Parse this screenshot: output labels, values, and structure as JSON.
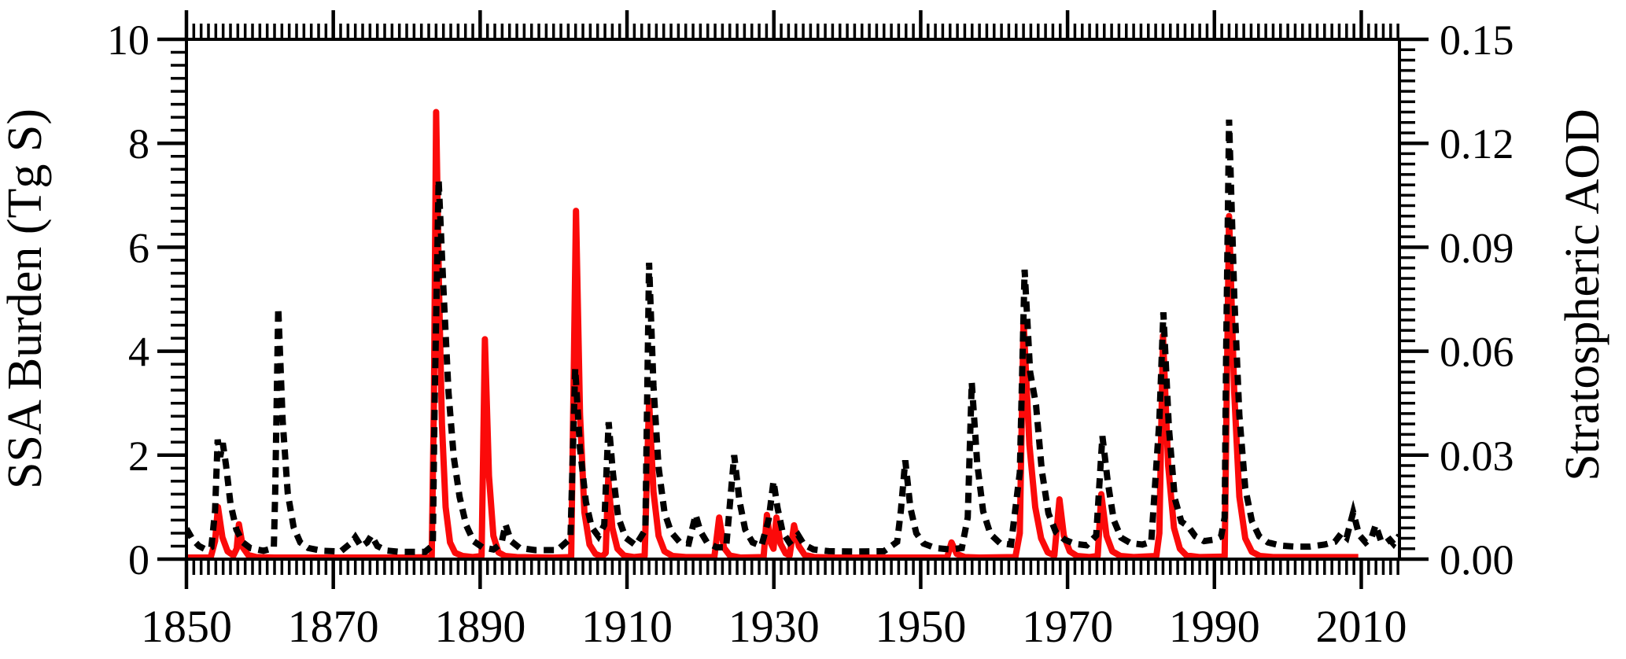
{
  "figure": {
    "left_axis": {
      "title": "SSA Burden (Tg S)"
    },
    "right_axis": {
      "title": "Stratospheric AOD"
    },
    "colors": {
      "ssa_burden": "#fb0a0a",
      "aod": "#000000",
      "axis": "#000000"
    }
  },
  "chart_data": {
    "type": "line",
    "title": "",
    "xlabel": "",
    "x_range": [
      1850,
      2015.2
    ],
    "x_major_ticks": [
      1850,
      1870,
      1890,
      1910,
      1930,
      1950,
      1970,
      1990,
      2010
    ],
    "x_minor_step": 1,
    "left_y_label": "SSA Burden (Tg S)",
    "left_y_range": [
      0,
      10
    ],
    "left_y_major_ticks": [
      0,
      2,
      4,
      6,
      8,
      10
    ],
    "left_y_minor_step": 0.25,
    "right_y_label": "Stratospheric AOD",
    "right_y_range": [
      0,
      0.15
    ],
    "right_y_major_ticks": [
      "0.00",
      "0.03",
      "0.06",
      "0.09",
      "0.12",
      "0.15"
    ],
    "right_y_major_values": [
      0,
      0.03,
      0.06,
      0.09,
      0.12,
      0.15
    ],
    "right_y_minor_step": 0.003,
    "grid": false,
    "legend": "none",
    "series": [
      {
        "name": "SSA Burden",
        "axis": "left",
        "units": "Tg S",
        "color": "#fb0a0a",
        "style": "solid",
        "points": [
          [
            1850,
            0.03
          ],
          [
            1853.3,
            0.03
          ],
          [
            1853.9,
            0.35
          ],
          [
            1854.3,
            1.0
          ],
          [
            1854.9,
            0.42
          ],
          [
            1855.6,
            0.15
          ],
          [
            1856.4,
            0.07
          ],
          [
            1856.85,
            0.2
          ],
          [
            1857.15,
            0.67
          ],
          [
            1857.7,
            0.22
          ],
          [
            1858.4,
            0.08
          ],
          [
            1859.5,
            0.04
          ],
          [
            1862,
            0.03
          ],
          [
            1870,
            0.03
          ],
          [
            1880,
            0.03
          ],
          [
            1883.4,
            0.04
          ],
          [
            1883.7,
            3.0
          ],
          [
            1884.0,
            8.6
          ],
          [
            1884.4,
            5.2
          ],
          [
            1884.8,
            2.6
          ],
          [
            1885.3,
            1.0
          ],
          [
            1885.9,
            0.32
          ],
          [
            1886.6,
            0.12
          ],
          [
            1887.6,
            0.06
          ],
          [
            1889,
            0.04
          ],
          [
            1890.2,
            0.06
          ],
          [
            1890.65,
            4.23
          ],
          [
            1891.2,
            1.6
          ],
          [
            1891.8,
            0.45
          ],
          [
            1892.5,
            0.13
          ],
          [
            1893.4,
            0.06
          ],
          [
            1895,
            0.04
          ],
          [
            1900,
            0.03
          ],
          [
            1902.4,
            0.04
          ],
          [
            1903.05,
            6.7
          ],
          [
            1903.6,
            2.8
          ],
          [
            1904.2,
            0.9
          ],
          [
            1904.9,
            0.28
          ],
          [
            1905.7,
            0.1
          ],
          [
            1906.6,
            0.05
          ],
          [
            1907.1,
            0.12
          ],
          [
            1907.45,
            1.55
          ],
          [
            1908.0,
            0.6
          ],
          [
            1908.7,
            0.2
          ],
          [
            1909.6,
            0.07
          ],
          [
            1911,
            0.04
          ],
          [
            1912.4,
            0.06
          ],
          [
            1913.0,
            3.05
          ],
          [
            1913.6,
            1.3
          ],
          [
            1914.3,
            0.45
          ],
          [
            1915.1,
            0.15
          ],
          [
            1916.2,
            0.06
          ],
          [
            1918,
            0.04
          ],
          [
            1921.9,
            0.04
          ],
          [
            1922.55,
            0.8
          ],
          [
            1923.2,
            0.22
          ],
          [
            1924,
            0.07
          ],
          [
            1925.5,
            0.03
          ],
          [
            1928.6,
            0.04
          ],
          [
            1929.05,
            0.85
          ],
          [
            1929.55,
            0.32
          ],
          [
            1929.95,
            0.2
          ],
          [
            1930.35,
            0.8
          ],
          [
            1930.9,
            0.3
          ],
          [
            1931.6,
            0.11
          ],
          [
            1932.15,
            0.07
          ],
          [
            1932.75,
            0.65
          ],
          [
            1933.4,
            0.25
          ],
          [
            1934.2,
            0.08
          ],
          [
            1935.5,
            0.04
          ],
          [
            1938,
            0.03
          ],
          [
            1945,
            0.03
          ],
          [
            1953.6,
            0.03
          ],
          [
            1954.2,
            0.32
          ],
          [
            1954.9,
            0.1
          ],
          [
            1956,
            0.04
          ],
          [
            1958,
            0.03
          ],
          [
            1962.9,
            0.04
          ],
          [
            1963.5,
            0.5
          ],
          [
            1964.0,
            4.6
          ],
          [
            1964.8,
            2.2
          ],
          [
            1965.6,
            1.0
          ],
          [
            1966.4,
            0.4
          ],
          [
            1967.3,
            0.13
          ],
          [
            1968.2,
            0.07
          ],
          [
            1968.9,
            1.15
          ],
          [
            1969.5,
            0.45
          ],
          [
            1970.3,
            0.15
          ],
          [
            1971.3,
            0.06
          ],
          [
            1973,
            0.04
          ],
          [
            1974.1,
            0.06
          ],
          [
            1974.6,
            1.25
          ],
          [
            1975.3,
            0.45
          ],
          [
            1976.1,
            0.15
          ],
          [
            1977.2,
            0.06
          ],
          [
            1979,
            0.04
          ],
          [
            1982.1,
            0.06
          ],
          [
            1982.5,
            0.5
          ],
          [
            1983.0,
            4.3
          ],
          [
            1983.7,
            1.8
          ],
          [
            1984.5,
            0.6
          ],
          [
            1985.3,
            0.2
          ],
          [
            1986.2,
            0.07
          ],
          [
            1988,
            0.04
          ],
          [
            1991.4,
            0.05
          ],
          [
            1992.0,
            6.6
          ],
          [
            1992.7,
            3.2
          ],
          [
            1993.4,
            1.2
          ],
          [
            1994.2,
            0.4
          ],
          [
            1995.1,
            0.14
          ],
          [
            1996.2,
            0.06
          ],
          [
            1998,
            0.04
          ],
          [
            2002,
            0.04
          ],
          [
            2006,
            0.04
          ],
          [
            2009.6,
            0.04
          ]
        ]
      },
      {
        "name": "Stratospheric AOD",
        "axis": "right",
        "units": "AOD",
        "color": "#000000",
        "style": "dashed",
        "points": [
          [
            1850,
            0.0088
          ],
          [
            1850.8,
            0.0058
          ],
          [
            1851.7,
            0.0038
          ],
          [
            1852.6,
            0.0028
          ],
          [
            1853.4,
            0.0035
          ],
          [
            1853.9,
            0.014
          ],
          [
            1854.25,
            0.0345
          ],
          [
            1854.6,
            0.0295
          ],
          [
            1854.95,
            0.0335
          ],
          [
            1855.4,
            0.027
          ],
          [
            1856.0,
            0.016
          ],
          [
            1856.8,
            0.0085
          ],
          [
            1857.7,
            0.0048
          ],
          [
            1858.7,
            0.0032
          ],
          [
            1860.5,
            0.0024
          ],
          [
            1861.9,
            0.0032
          ],
          [
            1862.1,
            0.02
          ],
          [
            1862.5,
            0.0725
          ],
          [
            1863.1,
            0.04
          ],
          [
            1863.8,
            0.019
          ],
          [
            1864.6,
            0.0092
          ],
          [
            1865.5,
            0.0048
          ],
          [
            1866.6,
            0.0032
          ],
          [
            1868.5,
            0.0024
          ],
          [
            1871,
            0.0022
          ],
          [
            1872.5,
            0.0048
          ],
          [
            1873.0,
            0.0063
          ],
          [
            1873.8,
            0.0036
          ],
          [
            1874.6,
            0.0048
          ],
          [
            1875.2,
            0.0068
          ],
          [
            1876.0,
            0.0038
          ],
          [
            1877.2,
            0.0025
          ],
          [
            1879,
            0.0021
          ],
          [
            1882.5,
            0.0021
          ],
          [
            1883.55,
            0.004
          ],
          [
            1883.8,
            0.045
          ],
          [
            1884.35,
            0.1095
          ],
          [
            1885.0,
            0.078
          ],
          [
            1885.7,
            0.048
          ],
          [
            1886.4,
            0.0295
          ],
          [
            1887.2,
            0.018
          ],
          [
            1888.1,
            0.0098
          ],
          [
            1889.1,
            0.0052
          ],
          [
            1890.3,
            0.0034
          ],
          [
            1891.8,
            0.0028
          ],
          [
            1892.9,
            0.0045
          ],
          [
            1893.45,
            0.01
          ],
          [
            1894.2,
            0.0052
          ],
          [
            1895.4,
            0.0032
          ],
          [
            1897.5,
            0.0026
          ],
          [
            1900.5,
            0.0026
          ],
          [
            1902.3,
            0.006
          ],
          [
            1902.95,
            0.055
          ],
          [
            1903.6,
            0.032
          ],
          [
            1904.4,
            0.0165
          ],
          [
            1905.2,
            0.0092
          ],
          [
            1906.1,
            0.0066
          ],
          [
            1906.9,
            0.0098
          ],
          [
            1907.5,
            0.0395
          ],
          [
            1908.1,
            0.0245
          ],
          [
            1908.8,
            0.0122
          ],
          [
            1909.8,
            0.0062
          ],
          [
            1911.2,
            0.004
          ],
          [
            1912.5,
            0.0085
          ],
          [
            1912.7,
            0.04
          ],
          [
            1913.0,
            0.0855
          ],
          [
            1913.6,
            0.05
          ],
          [
            1914.3,
            0.0265
          ],
          [
            1915.1,
            0.0135
          ],
          [
            1916.0,
            0.0078
          ],
          [
            1917.2,
            0.0048
          ],
          [
            1918.4,
            0.0045
          ],
          [
            1919.35,
            0.0128
          ],
          [
            1920.0,
            0.008
          ],
          [
            1920.9,
            0.0048
          ],
          [
            1922.2,
            0.0034
          ],
          [
            1923.5,
            0.0034
          ],
          [
            1924.6,
            0.03
          ],
          [
            1925.3,
            0.017
          ],
          [
            1926.1,
            0.0085
          ],
          [
            1927.1,
            0.0048
          ],
          [
            1928.3,
            0.0038
          ],
          [
            1929.3,
            0.0115
          ],
          [
            1929.95,
            0.0225
          ],
          [
            1930.5,
            0.0148
          ],
          [
            1931.2,
            0.0078
          ],
          [
            1932.1,
            0.0048
          ],
          [
            1933.3,
            0.007
          ],
          [
            1934.1,
            0.0042
          ],
          [
            1935.4,
            0.0028
          ],
          [
            1937.5,
            0.0023
          ],
          [
            1941,
            0.0022
          ],
          [
            1945,
            0.0023
          ],
          [
            1946.8,
            0.005
          ],
          [
            1947.3,
            0.014
          ],
          [
            1947.9,
            0.0285
          ],
          [
            1948.6,
            0.0148
          ],
          [
            1949.4,
            0.0075
          ],
          [
            1950.4,
            0.0045
          ],
          [
            1952,
            0.0032
          ],
          [
            1954,
            0.0028
          ],
          [
            1955.6,
            0.0032
          ],
          [
            1956.4,
            0.012
          ],
          [
            1956.95,
            0.051
          ],
          [
            1957.7,
            0.0275
          ],
          [
            1958.5,
            0.0138
          ],
          [
            1959.5,
            0.0072
          ],
          [
            1960.8,
            0.0046
          ],
          [
            1962.3,
            0.0042
          ],
          [
            1963.5,
            0.025
          ],
          [
            1964.15,
            0.0835
          ],
          [
            1964.9,
            0.054
          ],
          [
            1965.7,
            0.0445
          ],
          [
            1966.5,
            0.0255
          ],
          [
            1967.4,
            0.0132
          ],
          [
            1968.4,
            0.0078
          ],
          [
            1969.6,
            0.0056
          ],
          [
            1971,
            0.0044
          ],
          [
            1972.6,
            0.004
          ],
          [
            1973.9,
            0.0068
          ],
          [
            1974.75,
            0.0355
          ],
          [
            1975.5,
            0.022
          ],
          [
            1976.3,
            0.0112
          ],
          [
            1977.3,
            0.0062
          ],
          [
            1978.6,
            0.0046
          ],
          [
            1980.2,
            0.0042
          ],
          [
            1981.4,
            0.005
          ],
          [
            1982.5,
            0.04
          ],
          [
            1983.05,
            0.0712
          ],
          [
            1983.8,
            0.038
          ],
          [
            1984.6,
            0.0175
          ],
          [
            1985.5,
            0.0108
          ],
          [
            1986.4,
            0.0095
          ],
          [
            1987.4,
            0.0066
          ],
          [
            1988.6,
            0.0052
          ],
          [
            1989.9,
            0.0056
          ],
          [
            1990.9,
            0.0065
          ],
          [
            1991.4,
            0.012
          ],
          [
            1991.6,
            0.06
          ],
          [
            1992.0,
            0.1268
          ],
          [
            1992.7,
            0.076
          ],
          [
            1993.4,
            0.0415
          ],
          [
            1994.2,
            0.0205
          ],
          [
            1995.1,
            0.011
          ],
          [
            1996.1,
            0.0066
          ],
          [
            1997.3,
            0.0048
          ],
          [
            1999,
            0.0039
          ],
          [
            2001,
            0.0036
          ],
          [
            2003,
            0.0036
          ],
          [
            2005,
            0.0042
          ],
          [
            2006.4,
            0.005
          ],
          [
            2007.3,
            0.0075
          ],
          [
            2008.0,
            0.0062
          ],
          [
            2008.9,
            0.0135
          ],
          [
            2009.7,
            0.007
          ],
          [
            2010.6,
            0.0048
          ],
          [
            2011.4,
            0.0062
          ],
          [
            2011.95,
            0.0098
          ],
          [
            2012.7,
            0.0052
          ],
          [
            2013.4,
            0.0048
          ],
          [
            2013.9,
            0.0056
          ],
          [
            2014.4,
            0.0044
          ],
          [
            2014.9,
            0.006
          ],
          [
            2015.2,
            0.0068
          ]
        ]
      }
    ]
  }
}
